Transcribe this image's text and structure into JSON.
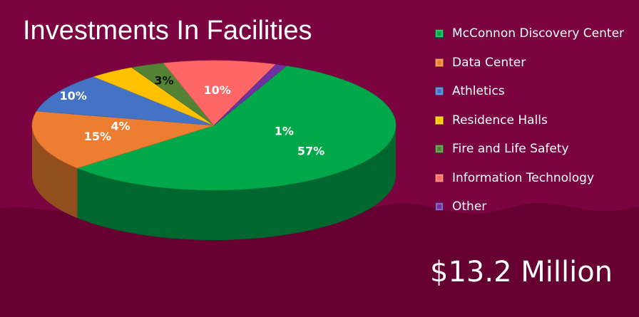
{
  "title": "Investments In Facilities",
  "total": "$13.2 Million",
  "chart_data": {
    "type": "pie",
    "title": "Investments In Facilities",
    "unit": "%",
    "categories": [
      "McConnon Discovery Center",
      "Data Center",
      "Athletics",
      "Residence Halls",
      "Fire and Life Safety",
      "Information Technology",
      "Other"
    ],
    "values": [
      57,
      15,
      10,
      4,
      3,
      10,
      1
    ],
    "labels": [
      "57%",
      "15%",
      "10%",
      "4%",
      "3%",
      "10%",
      "1%"
    ],
    "colors": [
      "#00a84a",
      "#ed7d31",
      "#4472c4",
      "#ffc000",
      "#548235",
      "#ff6666",
      "#7030a0"
    ],
    "legend_position": "right"
  }
}
